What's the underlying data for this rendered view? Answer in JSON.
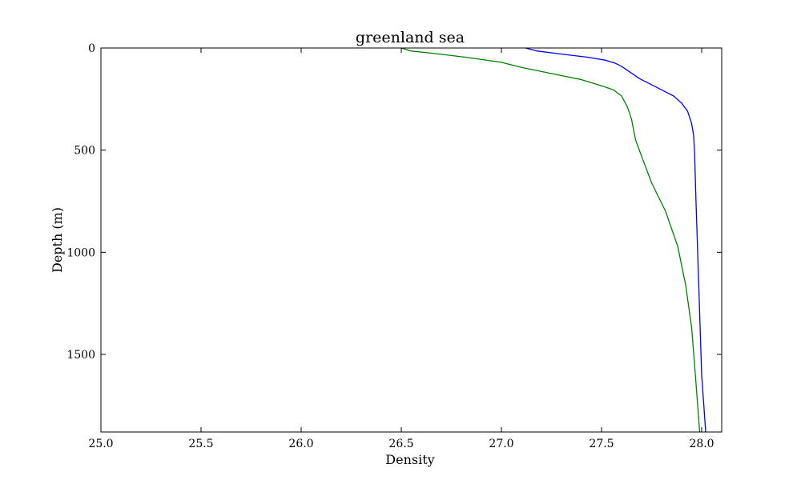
{
  "chart_data": {
    "type": "line",
    "title": "greenland sea",
    "xlabel": "Density",
    "ylabel": "Depth (m)",
    "xlim": [
      25.0,
      28.1
    ],
    "ylim": [
      1880,
      0
    ],
    "y_inverted": true,
    "grid": false,
    "x_ticks": [
      25.0,
      25.5,
      26.0,
      26.5,
      27.0,
      27.5,
      28.0
    ],
    "x_tick_labels": [
      "25.0",
      "25.5",
      "26.0",
      "26.5",
      "27.0",
      "27.5",
      "28.0"
    ],
    "y_ticks": [
      0,
      500,
      1000,
      1500
    ],
    "y_tick_labels": [
      "0",
      "500",
      "1000",
      "1500"
    ],
    "series": [
      {
        "color": "#0000ff",
        "points": [
          [
            27.12,
            0
          ],
          [
            27.18,
            15
          ],
          [
            27.3,
            30
          ],
          [
            27.43,
            45
          ],
          [
            27.52,
            60
          ],
          [
            27.57,
            75
          ],
          [
            27.6,
            90
          ],
          [
            27.63,
            110
          ],
          [
            27.66,
            130
          ],
          [
            27.69,
            150
          ],
          [
            27.75,
            180
          ],
          [
            27.8,
            205
          ],
          [
            27.86,
            235
          ],
          [
            27.9,
            270
          ],
          [
            27.93,
            310
          ],
          [
            27.95,
            370
          ],
          [
            27.96,
            430
          ],
          [
            27.965,
            520
          ],
          [
            27.97,
            700
          ],
          [
            27.98,
            1000
          ],
          [
            27.99,
            1300
          ],
          [
            28.0,
            1600
          ],
          [
            28.02,
            1880
          ]
        ]
      },
      {
        "color": "#008000",
        "points": [
          [
            26.5,
            0
          ],
          [
            26.55,
            15
          ],
          [
            26.65,
            25
          ],
          [
            26.82,
            45
          ],
          [
            27.0,
            70
          ],
          [
            27.1,
            95
          ],
          [
            27.2,
            115
          ],
          [
            27.3,
            135
          ],
          [
            27.4,
            155
          ],
          [
            27.5,
            185
          ],
          [
            27.56,
            205
          ],
          [
            27.6,
            235
          ],
          [
            27.63,
            290
          ],
          [
            27.65,
            350
          ],
          [
            27.67,
            450
          ],
          [
            27.7,
            530
          ],
          [
            27.75,
            660
          ],
          [
            27.82,
            800
          ],
          [
            27.88,
            970
          ],
          [
            27.92,
            1160
          ],
          [
            27.95,
            1370
          ],
          [
            27.97,
            1620
          ],
          [
            27.99,
            1880
          ]
        ]
      }
    ]
  }
}
